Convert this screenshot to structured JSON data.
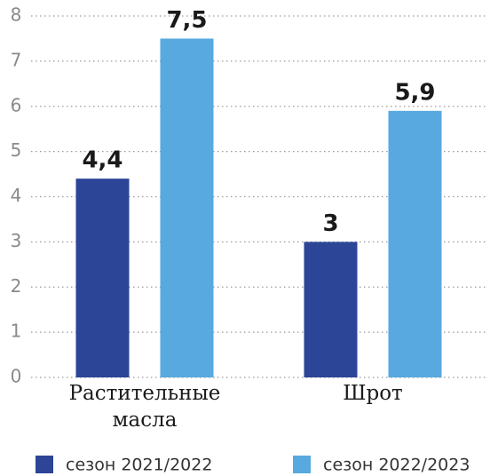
{
  "chart_data": {
    "type": "bar",
    "categories": [
      "Растительные масла",
      "Шрот"
    ],
    "series": [
      {
        "name": "сезон 2021/2022",
        "color": "#2c4596",
        "values": [
          4.4,
          3
        ],
        "value_labels": [
          "4,4",
          "3"
        ]
      },
      {
        "name": "сезон 2022/2023",
        "color": "#58a9df",
        "values": [
          7.5,
          5.9
        ],
        "value_labels": [
          "7,5",
          "5,9"
        ]
      }
    ],
    "ylim": [
      0,
      8
    ],
    "yticks": [
      0,
      1,
      2,
      3,
      4,
      5,
      6,
      7,
      8
    ],
    "grid": true,
    "legend": "bottom"
  }
}
